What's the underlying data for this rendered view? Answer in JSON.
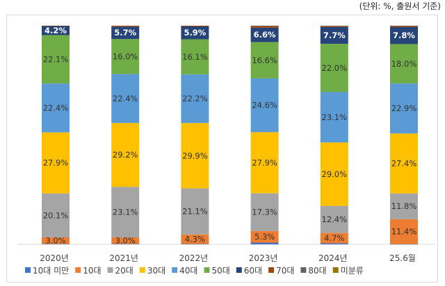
{
  "unit_note": "(단위: %, 출원서 기준)",
  "colors": {
    "10대 미만": "#4472c4",
    "10대": "#ed7d31",
    "20대": "#a5a5a5",
    "30대": "#ffc000",
    "40대": "#5b9bd5",
    "50대": "#70ad47",
    "60대": "#264478",
    "70대": "#9e480e",
    "80대": "#636363",
    "미분류": "#997300"
  },
  "chart_data": {
    "type": "bar",
    "stacked": true,
    "normalized": true,
    "categories": [
      "2020년",
      "2021년",
      "2022년",
      "2023년",
      "2024년",
      "25.6월"
    ],
    "legend_position": "bottom",
    "series": [
      {
        "name": "10대 미만",
        "values": [
          0.2,
          0.2,
          0.2,
          0.8,
          0.5,
          0.1
        ]
      },
      {
        "name": "10대",
        "values": [
          3.0,
          3.0,
          4.3,
          5.3,
          4.7,
          11.4
        ]
      },
      {
        "name": "20대",
        "values": [
          20.1,
          23.1,
          21.1,
          17.3,
          12.4,
          11.8
        ]
      },
      {
        "name": "30대",
        "values": [
          27.9,
          29.2,
          29.9,
          27.9,
          29.0,
          27.4
        ]
      },
      {
        "name": "40대",
        "values": [
          22.4,
          22.4,
          22.2,
          24.6,
          23.1,
          22.9
        ]
      },
      {
        "name": "50대",
        "values": [
          22.1,
          16.0,
          16.1,
          16.6,
          22.0,
          18.0
        ]
      },
      {
        "name": "60대",
        "values": [
          4.2,
          5.7,
          5.9,
          6.6,
          7.7,
          7.8
        ]
      },
      {
        "name": "70대",
        "values": [
          0.1,
          0.4,
          0.3,
          0.8,
          0.4,
          0.5
        ]
      },
      {
        "name": "80대",
        "values": [
          0.0,
          0.0,
          0.0,
          0.1,
          0.2,
          0.1
        ]
      },
      {
        "name": "미분류",
        "values": [
          0.0,
          0.0,
          0.0,
          0.0,
          0.0,
          0.0
        ]
      }
    ],
    "data_labels": [
      {
        "series": "10대",
        "values": [
          "3.0%",
          "3.0%",
          "4.3%",
          "5.3%",
          "4.7%",
          "11.4%"
        ]
      },
      {
        "series": "20대",
        "values": [
          "20.1%",
          "23.1%",
          "21.1%",
          "17.3%",
          "12.4%",
          "11.8%"
        ]
      },
      {
        "series": "30대",
        "values": [
          "27.9%",
          "29.2%",
          "29.9%",
          "27.9%",
          "29.0%",
          "27.4%"
        ]
      },
      {
        "series": "40대",
        "values": [
          "22.4%",
          "22.4%",
          "22.2%",
          "24.6%",
          "23.1%",
          "22.9%"
        ]
      },
      {
        "series": "50대",
        "values": [
          "22.1%",
          "16.0%",
          "16.1%",
          "16.6%",
          "22.0%",
          "18.0%"
        ]
      },
      {
        "series": "60대",
        "values": [
          "4.2%",
          "5.7%",
          "5.9%",
          "6.6%",
          "7.7%",
          "7.8%"
        ]
      }
    ]
  }
}
